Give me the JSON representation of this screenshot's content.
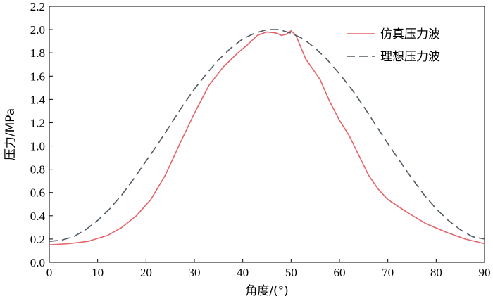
{
  "chart_data": {
    "type": "line",
    "title": "",
    "xlabel": "角度/(°)",
    "ylabel": "压力/MPa",
    "xlim": [
      0,
      90
    ],
    "ylim": [
      0,
      2.2
    ],
    "xticks": [
      0,
      10,
      20,
      30,
      40,
      50,
      60,
      70,
      80,
      90
    ],
    "yticks": [
      0.0,
      0.2,
      0.4,
      0.6,
      0.8,
      1.0,
      1.2,
      1.4,
      1.6,
      1.8,
      2.0,
      2.2
    ],
    "xtick_labels": [
      "0",
      "10",
      "20",
      "30",
      "40",
      "50",
      "60",
      "70",
      "80",
      "90"
    ],
    "ytick_labels": [
      "0.0",
      "0.2",
      "0.4",
      "0.6",
      "0.8",
      "1.0",
      "1.2",
      "1.4",
      "1.6",
      "1.8",
      "2.0",
      "2.2"
    ],
    "grid": false,
    "legend_position": "top-right",
    "series": [
      {
        "name": "仿真压力波",
        "color": "#e5636a",
        "style": "solid",
        "x": [
          0,
          4,
          8,
          12,
          15,
          18,
          21,
          24,
          27,
          30,
          33,
          36,
          39,
          41,
          43,
          45,
          47,
          48,
          49,
          50,
          51,
          53,
          56,
          58,
          60,
          62,
          64,
          66,
          68,
          70,
          74,
          78,
          82,
          86,
          90
        ],
        "y": [
          0.15,
          0.16,
          0.18,
          0.23,
          0.3,
          0.4,
          0.54,
          0.75,
          1.02,
          1.28,
          1.52,
          1.68,
          1.8,
          1.87,
          1.95,
          1.98,
          1.97,
          1.95,
          1.96,
          1.99,
          1.95,
          1.75,
          1.57,
          1.38,
          1.22,
          1.09,
          0.92,
          0.75,
          0.63,
          0.54,
          0.43,
          0.33,
          0.26,
          0.2,
          0.16
        ]
      },
      {
        "name": "理想压力波",
        "color": "#505a64",
        "style": "dashed",
        "x": [
          0,
          2.5,
          5,
          7.5,
          10,
          12.5,
          15,
          17.5,
          20,
          22.5,
          25,
          27.5,
          30,
          32.5,
          35,
          37.5,
          40,
          42.5,
          45,
          47.5,
          50,
          52.5,
          55,
          57.5,
          60,
          62.5,
          65,
          67.5,
          70,
          72.5,
          75,
          77.5,
          80,
          82.5,
          85,
          87.5,
          90
        ],
        "y": [
          0.18,
          0.19,
          0.22,
          0.28,
          0.36,
          0.46,
          0.58,
          0.72,
          0.87,
          1.02,
          1.18,
          1.34,
          1.49,
          1.62,
          1.74,
          1.84,
          1.92,
          1.97,
          2.0,
          2.0,
          1.97,
          1.92,
          1.84,
          1.74,
          1.62,
          1.49,
          1.34,
          1.18,
          1.02,
          0.87,
          0.72,
          0.58,
          0.46,
          0.36,
          0.28,
          0.22,
          0.2
        ]
      }
    ]
  }
}
